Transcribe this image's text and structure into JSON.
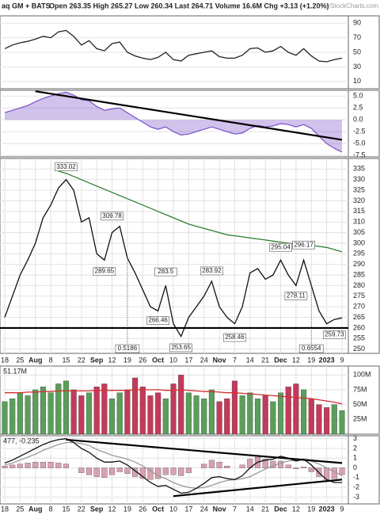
{
  "chart_data": [
    {
      "type": "line",
      "title": "aq GM + BATS",
      "subtitle": "Open 263.35 High 265.27 Low 260.34 Last 264.71 Volume 16.6M Chg +3.13 (+1.20%)",
      "source": "©StockCharts.com",
      "categories": [
        "18",
        null,
        "25",
        null,
        "Aug",
        null,
        "8",
        null,
        "15",
        null,
        "22",
        null,
        "Sep",
        null,
        "12",
        null,
        "19",
        null,
        "26",
        null,
        "Oct",
        null,
        "10",
        null,
        "17",
        null,
        "24",
        null,
        "Nov",
        null,
        "7",
        null,
        "14",
        null,
        "21",
        null,
        "Dec",
        null,
        "12",
        null,
        "19",
        null,
        "2023",
        null,
        "9"
      ],
      "series": [
        {
          "color": "#111111",
          "values": [
            265,
            275,
            285,
            292,
            300,
            312,
            318,
            326,
            330,
            325,
            310,
            312,
            295,
            292,
            305,
            308,
            293,
            286,
            278,
            270,
            268,
            280,
            262,
            256,
            265,
            270,
            275,
            282,
            270,
            265,
            262,
            270,
            286,
            288,
            283,
            285,
            292,
            285,
            280,
            292,
            280,
            268,
            262,
            264,
            264.71
          ]
        },
        {
          "color": "#2e7d32",
          "values": [
            null,
            null,
            null,
            null,
            null,
            null,
            null,
            334,
            333,
            331.5,
            330,
            328.5,
            327,
            325.5,
            324,
            322.5,
            321,
            319.5,
            318,
            316.5,
            315,
            313.5,
            312,
            310.5,
            309,
            308,
            307,
            306,
            305,
            304,
            303.5,
            303,
            302.5,
            302,
            301.5,
            301,
            300.5,
            300,
            299.8,
            299.5,
            299,
            298.5,
            298,
            297,
            296
          ]
        }
      ],
      "annotations": [
        {
          "index": 8,
          "value": 333.02
        },
        {
          "index": 14,
          "value": 309.78
        },
        {
          "index": 13,
          "value": 289.65
        },
        {
          "index": 21,
          "value": 283.5
        },
        {
          "index": 20,
          "value": 266.46
        },
        {
          "index": 23,
          "value": 253.65
        },
        {
          "index": 27,
          "value": 283.92
        },
        {
          "index": 30,
          "value": 258.46
        },
        {
          "index": 36,
          "value": 295.04
        },
        {
          "index": 39,
          "value": 296.17
        },
        {
          "index": 38,
          "value": 278.11
        },
        {
          "index": 43,
          "value": 259.73
        }
      ],
      "ratios": [
        {
          "index": 16,
          "value": 0.5186
        },
        {
          "index": 40,
          "value": 0.6554
        }
      ],
      "support": 260,
      "ylim": [
        248,
        340
      ],
      "yticks": [
        250,
        255,
        260,
        265,
        270,
        275,
        280,
        285,
        290,
        295,
        300,
        305,
        310,
        315,
        320,
        325,
        330,
        335
      ],
      "grid": true
    },
    {
      "type": "line",
      "series": [
        {
          "color": "#222222",
          "values": [
            55,
            60,
            63,
            65,
            68,
            72,
            70,
            78,
            80,
            72,
            60,
            66,
            55,
            52,
            62,
            64,
            50,
            45,
            42,
            40,
            43,
            50,
            40,
            38,
            46,
            48,
            50,
            52,
            44,
            42,
            42,
            46,
            55,
            56,
            50,
            52,
            58,
            50,
            46,
            55,
            45,
            38,
            37,
            40,
            42
          ]
        }
      ],
      "ylim": [
        0,
        100
      ],
      "yticks": [
        90,
        70,
        50,
        30,
        10
      ],
      "grid": true
    },
    {
      "type": "area",
      "series": [
        {
          "color": "#7b4fc9",
          "values": [
            1.5,
            2.0,
            2.5,
            3.0,
            3.8,
            4.5,
            5.0,
            5.5,
            5.8,
            5.2,
            4.2,
            4.0,
            2.8,
            2.0,
            2.3,
            2.5,
            1.5,
            0.5,
            -0.5,
            -1.5,
            -2.0,
            -1.5,
            -2.5,
            -3.2,
            -3.0,
            -2.5,
            -2.0,
            -1.5,
            -2.0,
            -2.5,
            -3.0,
            -2.8,
            -1.8,
            -1.2,
            -1.5,
            -1.3,
            -0.8,
            -1.0,
            -1.5,
            -1.0,
            -1.8,
            -3.5,
            -5.0,
            -6.0,
            -6.8
          ]
        }
      ],
      "trendlines": [
        {
          "from": [
            4,
            6.0
          ],
          "to": [
            44,
            -4.2
          ]
        }
      ],
      "ylim": [
        -7.8,
        6.2
      ],
      "yticks": [
        {
          "value": 5,
          "label": "5.0"
        },
        {
          "value": 2.5,
          "label": "2.5"
        },
        {
          "value": 0,
          "label": "0.0"
        },
        {
          "value": -2.5,
          "label": "-2.5"
        },
        {
          "value": -5,
          "label": "-5.0"
        },
        {
          "value": -7.5,
          "label": "-7.5"
        }
      ],
      "grid": true
    },
    {
      "type": "bar",
      "label": "51.17M",
      "up_color": "#5a9e5a",
      "down_color": "#c43a5a",
      "series": [
        {
          "values": [
            55000000,
            60000000,
            70000000,
            65000000,
            75000000,
            80000000,
            70000000,
            85000000,
            90000000,
            75000000,
            65000000,
            70000000,
            80000000,
            85000000,
            60000000,
            70000000,
            75000000,
            95000000,
            80000000,
            65000000,
            70000000,
            60000000,
            85000000,
            100000000,
            70000000,
            65000000,
            60000000,
            75000000,
            55000000,
            60000000,
            90000000,
            65000000,
            70000000,
            60000000,
            65000000,
            55000000,
            70000000,
            80000000,
            85000000,
            75000000,
            60000000,
            50000000,
            45000000,
            50000000,
            40000000
          ]
        },
        {
          "type": "line",
          "color": "#d32f2f",
          "values": [
            70000000,
            70000000,
            70000000,
            71000000,
            71000000,
            72000000,
            72000000,
            73000000,
            73000000,
            73000000,
            73000000,
            73000000,
            74000000,
            74000000,
            74000000,
            74000000,
            74000000,
            75000000,
            75000000,
            75000000,
            75000000,
            74000000,
            74000000,
            75000000,
            74000000,
            73000000,
            72000000,
            72000000,
            71000000,
            70000000,
            70000000,
            69000000,
            68000000,
            67000000,
            66000000,
            65000000,
            64000000,
            63000000,
            62000000,
            61000000,
            60000000,
            58000000,
            56000000,
            54000000,
            51170000
          ]
        }
      ],
      "ylim": [
        0,
        115000000
      ],
      "yticks": [
        {
          "value": 100000000,
          "label": "100M"
        },
        {
          "value": 75000000,
          "label": "75M"
        },
        {
          "value": 50000000,
          "label": "50M"
        },
        {
          "value": 25000000,
          "label": "25M"
        }
      ],
      "grid": true
    },
    {
      "type": "line",
      "label": "477, -0.235",
      "series": [
        {
          "type": "bar",
          "color": "#d9a0b0",
          "values": [
            0.2,
            0.3,
            0.4,
            0.5,
            0.6,
            0.6,
            0.6,
            0.5,
            0.4,
            0,
            -0.5,
            -0.7,
            -0.9,
            -1.0,
            -0.7,
            -0.4,
            -0.6,
            -0.9,
            -1.1,
            -1.2,
            -1.1,
            -0.7,
            -0.7,
            -0.8,
            -0.5,
            0,
            0.4,
            0.8,
            0.6,
            0.2,
            0,
            0.3,
            0.9,
            1.1,
            0.9,
            0.7,
            0.7,
            0.3,
            -0.1,
            0.1,
            -0.4,
            -0.9,
            -1.2,
            -1.1,
            -0.7
          ]
        },
        {
          "color": "#999999",
          "values": [
            0.3,
            0.5,
            0.8,
            1.1,
            1.4,
            1.8,
            2.1,
            2.4,
            2.6,
            2.6,
            2.5,
            2.3,
            1.9,
            1.6,
            1.3,
            1.1,
            0.9,
            0.6,
            0.2,
            -0.3,
            -0.8,
            -1.1,
            -1.5,
            -1.8,
            -2.0,
            -2.1,
            -2.0,
            -1.8,
            -1.5,
            -1.3,
            -1.2,
            -1.1,
            -0.9,
            -0.5,
            -0.1,
            0.2,
            0.5,
            0.7,
            0.8,
            0.8,
            0.7,
            0.4,
            0.0,
            -0.4,
            -0.8
          ]
        },
        {
          "color": "#111111",
          "values": [
            0.5,
            0.8,
            1.2,
            1.6,
            2.0,
            2.4,
            2.7,
            2.9,
            3.0,
            2.6,
            2.0,
            1.6,
            1.0,
            0.6,
            0.6,
            0.7,
            0.3,
            -0.3,
            -0.9,
            -1.5,
            -1.9,
            -1.8,
            -2.2,
            -2.6,
            -2.5,
            -2.1,
            -1.6,
            -1.0,
            -0.9,
            -1.1,
            -1.2,
            -0.8,
            0.0,
            0.6,
            0.8,
            0.9,
            1.2,
            1.0,
            0.7,
            0.9,
            0.3,
            -0.5,
            -1.2,
            -1.5,
            -1.5
          ]
        }
      ],
      "trendlines": [
        {
          "from": [
            8,
            2.9
          ],
          "to": [
            44,
            0.5
          ]
        },
        {
          "from": [
            22,
            -2.9
          ],
          "to": [
            44,
            -1.2
          ]
        }
      ],
      "ylim": [
        -3.7,
        3.3
      ],
      "yticks": [
        3,
        2,
        1,
        0,
        -1,
        -2,
        -3
      ],
      "grid": true
    }
  ]
}
